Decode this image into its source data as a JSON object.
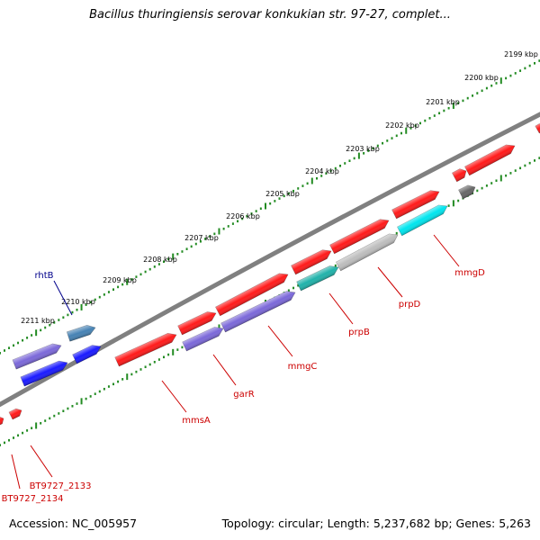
{
  "title": "Bacillus thuringiensis serovar konkukian str. 97-27, complet...",
  "footer": {
    "accession": "Accession: NC_005957",
    "topology": "Topology: circular; Length: 5,237,682 bp; Genes: 5,263"
  },
  "colors": {
    "backbone": "#808080",
    "tick": "#228B22",
    "gene_red": "#ff1a1a",
    "gene_purple": "#7b68d9",
    "gene_blue": "#1a1aff",
    "gene_steelblue": "#4682b4",
    "gene_teal": "#20b2aa",
    "gene_cyan": "#00e5ee",
    "gene_gray": "#bdbdbd",
    "gene_darkgray": "#666666",
    "label_red": "#cc0000",
    "label_blue": "#00008b"
  },
  "scale": {
    "ticks": [
      "2199 kbp",
      "2200 kbp",
      "2201 kbp",
      "2202 kbp",
      "2203 kbp",
      "2204 kbp",
      "2205 kbp",
      "2206 kbp",
      "2207 kbp",
      "2208 kbp",
      "2209 kbp",
      "2210 kbp",
      "2211 kbp"
    ]
  },
  "gene_labels": [
    {
      "text": "rhtB",
      "color": "blue"
    },
    {
      "text": "mmgD",
      "color": "red"
    },
    {
      "text": "prpD",
      "color": "red"
    },
    {
      "text": "prpB",
      "color": "red"
    },
    {
      "text": "mmgC",
      "color": "red"
    },
    {
      "text": "garR",
      "color": "red"
    },
    {
      "text": "mmsA",
      "color": "red"
    },
    {
      "text": "BT9727_2133",
      "color": "red"
    },
    {
      "text": "BT9727_2134",
      "color": "red"
    }
  ]
}
